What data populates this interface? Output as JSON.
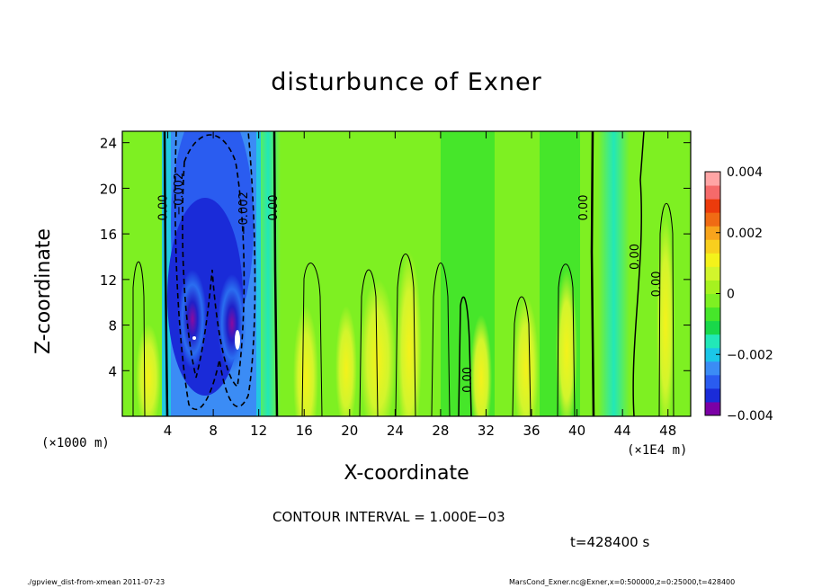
{
  "chart_data": {
    "type": "contour",
    "title": "disturbunce of Exner",
    "xlabel": "X-coordinate",
    "ylabel": "Z-coordinate",
    "x_unit_label": "(×1000 m)",
    "x_unit_label_right": "(×1E4 m)",
    "xlim": [
      0,
      50
    ],
    "ylim": [
      0,
      25
    ],
    "x_ticks": [
      4,
      8,
      12,
      16,
      20,
      24,
      28,
      32,
      36,
      40,
      44,
      48
    ],
    "x_tick_labels": [
      "4",
      "8",
      "12",
      "16",
      "20",
      "24",
      "28",
      "32",
      "36",
      "40",
      "44",
      "48"
    ],
    "y_ticks": [
      4,
      8,
      12,
      16,
      20,
      24
    ],
    "y_tick_labels": [
      "4",
      "8",
      "12",
      "16",
      "20",
      "24"
    ],
    "colorbar": {
      "min": -0.004,
      "max": 0.004,
      "tick_values": [
        0.004,
        0.002,
        0,
        -0.002,
        -0.004
      ],
      "tick_labels": [
        "0.004",
        "0.002",
        "0",
        "−0.002",
        "−0.004"
      ],
      "colors": [
        "#7b00a5",
        "#1a2bd8",
        "#2a5cf0",
        "#3b8cf5",
        "#1bc6e8",
        "#22e8b8",
        "#19d84a",
        "#46e62a",
        "#7ef022",
        "#a6f21f",
        "#d2f52c",
        "#f4f21b",
        "#f8cf1e",
        "#f8a41c",
        "#f06b14",
        "#ec3b0c",
        "#f56a6a",
        "#ffa5a5"
      ]
    },
    "contour_labels": [
      {
        "text": "0.00",
        "x": 3.9,
        "z": 18.3
      },
      {
        "text": "−0.002",
        "x": 5.3,
        "z": 19.5
      },
      {
        "text": "−0.002",
        "x": 11.0,
        "z": 17.8
      },
      {
        "text": "0.00",
        "x": 13.6,
        "z": 18.3
      },
      {
        "text": "0.00",
        "x": 40.9,
        "z": 18.3
      },
      {
        "text": "0.00",
        "x": 45.4,
        "z": 14.0
      },
      {
        "text": "0.00",
        "x": 47.3,
        "z": 11.6
      },
      {
        "text": "0.00",
        "x": 30.7,
        "z": 3.2
      }
    ],
    "contour_interval_label": "CONTOUR INTERVAL = 1.000E−03",
    "time_label": "t=428400  s"
  },
  "footer": {
    "left": "./gpview_dist-from-xmean   2011-07-23",
    "right": "MarsCond_Exner.nc@Exner,x=0:500000,z=0:25000,t=428400"
  }
}
